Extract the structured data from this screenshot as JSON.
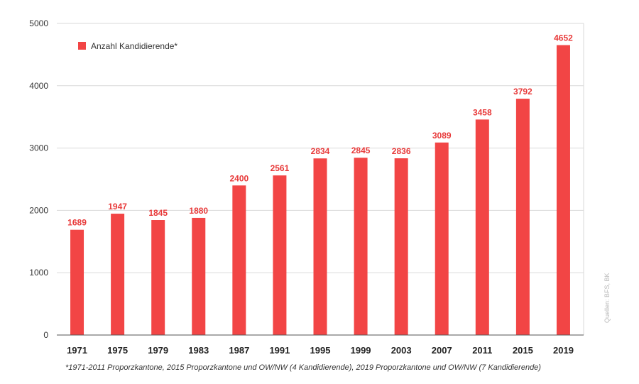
{
  "chart_data": {
    "type": "bar",
    "categories": [
      "1971",
      "1975",
      "1979",
      "1983",
      "1987",
      "1991",
      "1995",
      "1999",
      "2003",
      "2007",
      "2011",
      "2015",
      "2019"
    ],
    "series": [
      {
        "name": "Anzahl Kandidierende*",
        "values": [
          1689,
          1947,
          1845,
          1880,
          2400,
          2561,
          2834,
          2845,
          2836,
          3089,
          3458,
          3792,
          4652
        ]
      }
    ],
    "y_ticks": [
      "0",
      "1000",
      "2000",
      "3000",
      "4000",
      "5000"
    ],
    "ylim": [
      0,
      5000
    ],
    "grid": true,
    "legend_position": "top-left",
    "data_labels": true,
    "colors": {
      "bar": "#f24545",
      "label": "#e83a3a",
      "grid": "#d9d9d9",
      "axis": "#555555",
      "tick_text": "#333333"
    }
  },
  "footnote": "*1971-2011 Proporzkantone, 2015 Proporzkantone und OW/NW (4 Kandidierende), 2019 Proporzkantone und OW/NW (7 Kandidierende)",
  "source": "Quellen: BFS, BK"
}
